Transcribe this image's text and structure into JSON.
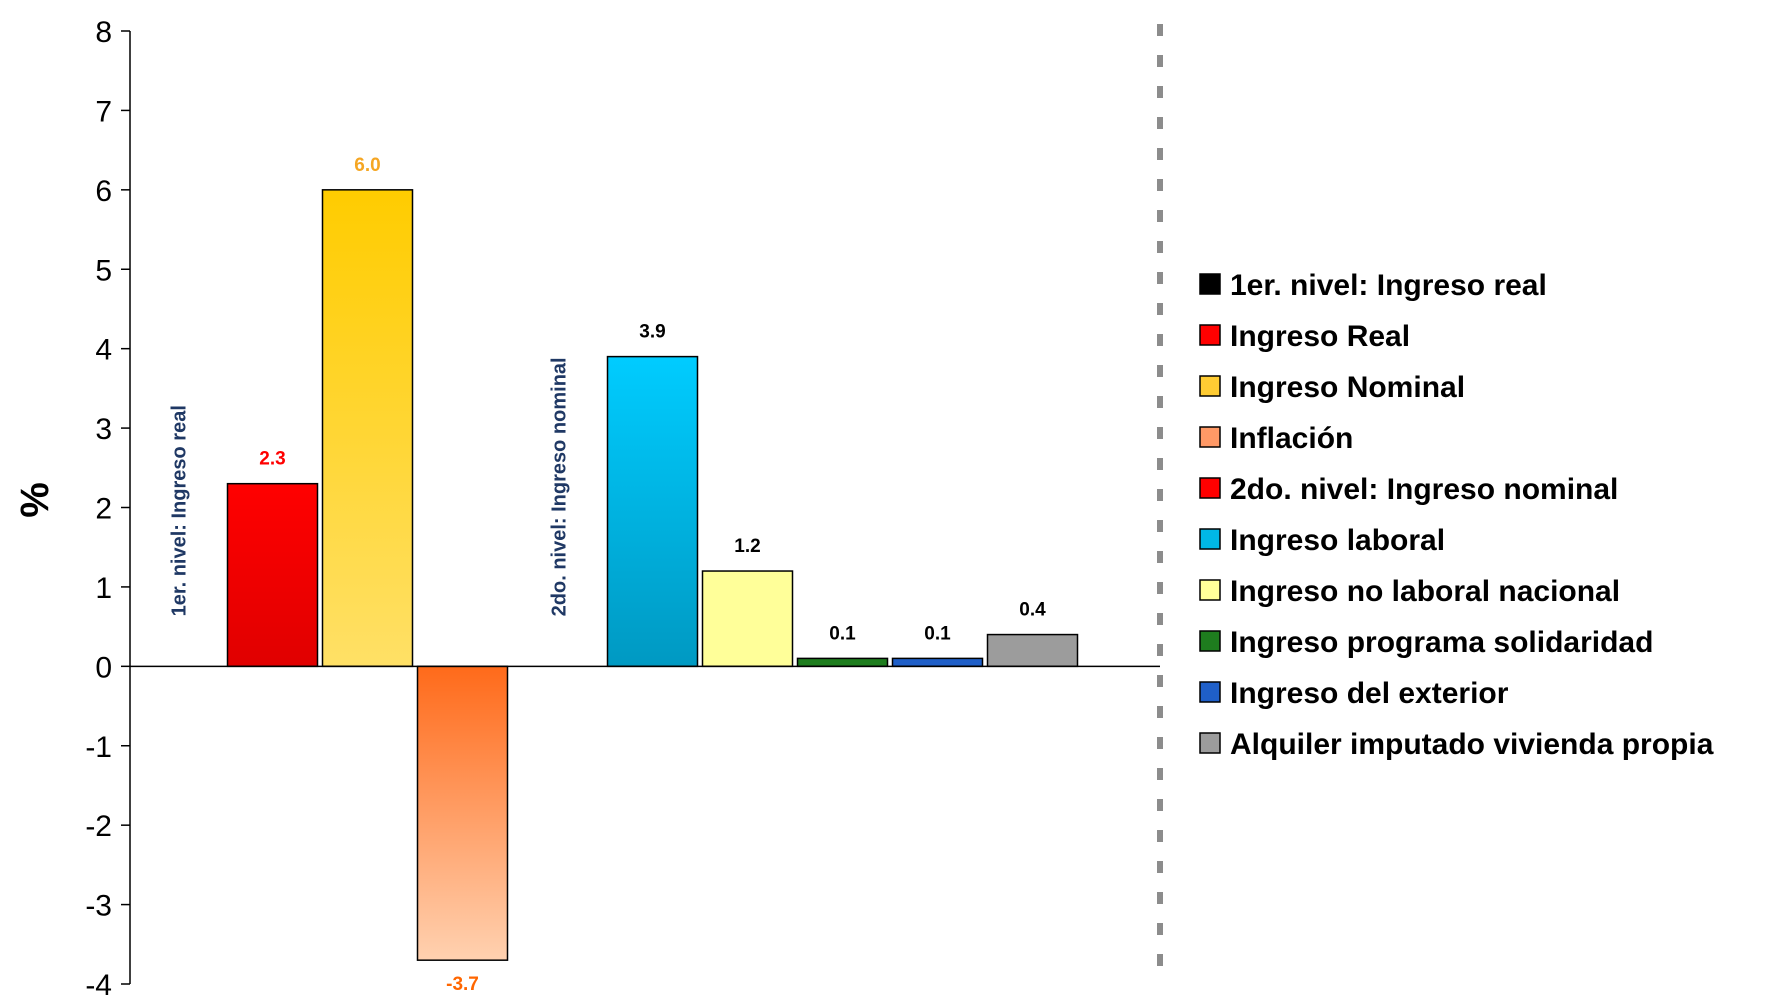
{
  "chart_data": {
    "type": "bar",
    "ylabel": "%",
    "ylim": [
      -4,
      8
    ],
    "yticks": [
      "8",
      "7",
      "6",
      "5",
      "4",
      "3",
      "2",
      "1",
      "0",
      "-1",
      "-2",
      "-3",
      "-4"
    ],
    "grid": false,
    "legend_position": "right",
    "group_labels": [
      {
        "text": "1er. nivel: Ingreso real",
        "slot": 0
      },
      {
        "text": "2do. nivel: Ingreso nominal",
        "slot": 4
      }
    ],
    "bars": [
      {
        "slot": 1,
        "value": 2.3,
        "label": "2.3",
        "fill_top": "#ff0000",
        "fill_bottom": "#e00000",
        "label_color": "#ff0000",
        "legend_index": 1
      },
      {
        "slot": 2,
        "value": 6.0,
        "label": "6.0",
        "fill_top": "#ffcc00",
        "fill_bottom": "#ffe066",
        "label_color": "#f5a623",
        "legend_index": 2
      },
      {
        "slot": 3,
        "value": -3.7,
        "label": "-3.7",
        "fill_top": "#ff6a1a",
        "fill_bottom": "#ffd1b0",
        "label_color": "#ff6600",
        "legend_index": 3
      },
      {
        "slot": 5,
        "value": 3.9,
        "label": "3.9",
        "fill_top": "#00ccff",
        "fill_bottom": "#0099c2",
        "label_color": "#000000",
        "legend_index": 5
      },
      {
        "slot": 6,
        "value": 1.2,
        "label": "1.2",
        "fill_top": "#ffff99",
        "fill_bottom": "#ffff99",
        "label_color": "#000000",
        "legend_index": 6
      },
      {
        "slot": 7,
        "value": 0.1,
        "label": "0.1",
        "fill_top": "#1e7d1e",
        "fill_bottom": "#1e7d1e",
        "label_color": "#000000",
        "legend_index": 7
      },
      {
        "slot": 8,
        "value": 0.1,
        "label": "0.1",
        "fill_top": "#1f5fc8",
        "fill_bottom": "#1f5fc8",
        "label_color": "#000000",
        "legend_index": 8
      },
      {
        "slot": 9,
        "value": 0.4,
        "label": "0.4",
        "fill_top": "#9c9c9c",
        "fill_bottom": "#9c9c9c",
        "label_color": "#000000",
        "legend_index": 9
      }
    ],
    "legend": [
      {
        "label": "1er. nivel: Ingreso real",
        "color": "#000000"
      },
      {
        "label": "Ingreso Real",
        "color": "#ff0000"
      },
      {
        "label": "Ingreso Nominal",
        "color": "#ffcc33"
      },
      {
        "label": "Inflación",
        "color": "#ff9966"
      },
      {
        "label": "2do. nivel: Ingreso nominal",
        "color": "#ff0000"
      },
      {
        "label": "Ingreso laboral",
        "color": "#00b8e6"
      },
      {
        "label": "Ingreso no laboral nacional",
        "color": "#ffff99"
      },
      {
        "label": "Ingreso programa solidaridad",
        "color": "#1e7d1e"
      },
      {
        "label": "Ingreso del exterior",
        "color": "#1f5fc8"
      },
      {
        "label": "Alquiler imputado vivienda propia",
        "color": "#9c9c9c"
      }
    ],
    "separator_color": "#8c8c8c"
  }
}
